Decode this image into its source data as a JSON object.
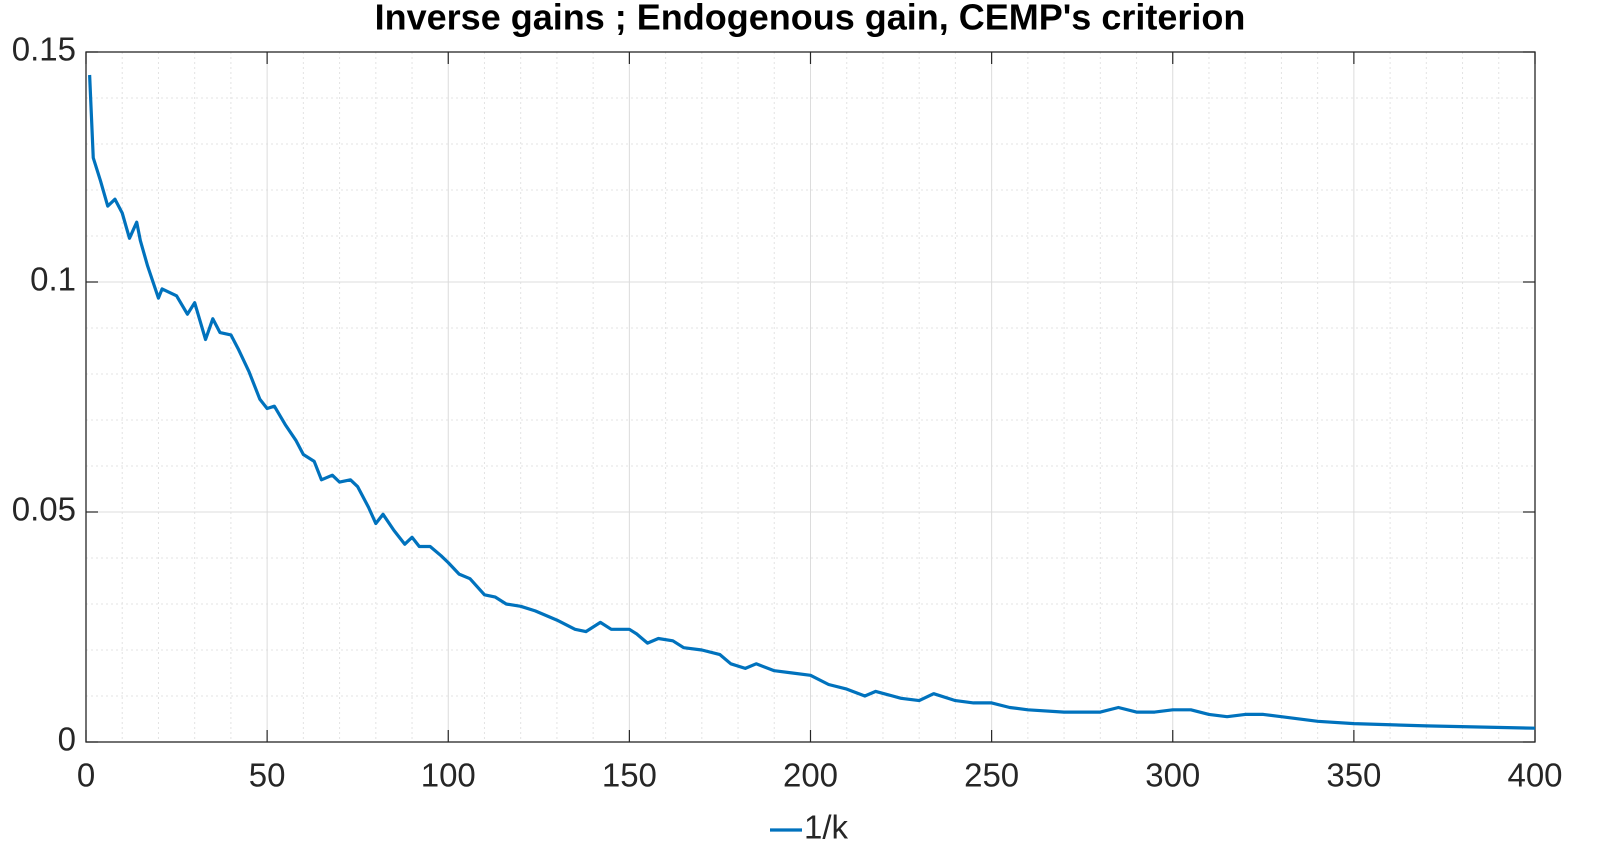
{
  "chart_data": {
    "type": "line",
    "title": "Inverse gains ; Endogenous gain, CEMP's criterion",
    "x": [
      1,
      2,
      4,
      6,
      8,
      10,
      12,
      14,
      15,
      17,
      20,
      21,
      25,
      28,
      30,
      33,
      35,
      37,
      40,
      42,
      45,
      48,
      50,
      52,
      55,
      58,
      60,
      63,
      65,
      68,
      70,
      73,
      75,
      78,
      80,
      82,
      85,
      88,
      90,
      92,
      95,
      98,
      100,
      103,
      106,
      110,
      113,
      116,
      120,
      124,
      127,
      130,
      135,
      138,
      142,
      145,
      150,
      152,
      155,
      158,
      162,
      165,
      170,
      175,
      178,
      182,
      185,
      190,
      195,
      200,
      205,
      210,
      215,
      218,
      225,
      230,
      234,
      240,
      245,
      250,
      255,
      260,
      270,
      280,
      285,
      290,
      295,
      300,
      305,
      310,
      315,
      320,
      325,
      330,
      340,
      350,
      370,
      400
    ],
    "series": [
      {
        "name": "1/k",
        "color": "#0072bd",
        "values": [
          0.145,
          0.127,
          0.122,
          0.1165,
          0.118,
          0.115,
          0.1095,
          0.113,
          0.109,
          0.1035,
          0.0965,
          0.0985,
          0.097,
          0.093,
          0.0955,
          0.0875,
          0.092,
          0.089,
          0.0885,
          0.0855,
          0.0805,
          0.0745,
          0.0725,
          0.073,
          0.069,
          0.0655,
          0.0625,
          0.061,
          0.057,
          0.058,
          0.0565,
          0.057,
          0.0555,
          0.051,
          0.0475,
          0.0495,
          0.046,
          0.043,
          0.0445,
          0.0425,
          0.0425,
          0.0405,
          0.039,
          0.0365,
          0.0355,
          0.032,
          0.0315,
          0.03,
          0.0295,
          0.0285,
          0.0275,
          0.0265,
          0.0245,
          0.024,
          0.026,
          0.0245,
          0.0245,
          0.0235,
          0.0215,
          0.0225,
          0.022,
          0.0205,
          0.02,
          0.019,
          0.017,
          0.016,
          0.017,
          0.0155,
          0.015,
          0.0145,
          0.0125,
          0.0115,
          0.01,
          0.011,
          0.0095,
          0.009,
          0.0105,
          0.009,
          0.0085,
          0.0085,
          0.0075,
          0.007,
          0.0065,
          0.0065,
          0.0075,
          0.0065,
          0.0065,
          0.007,
          0.007,
          0.006,
          0.0055,
          0.006,
          0.006,
          0.0055,
          0.0045,
          0.004,
          0.0035,
          0.003
        ]
      }
    ],
    "xlim": [
      0,
      400
    ],
    "xticks": [
      0,
      50,
      100,
      150,
      200,
      250,
      300,
      350,
      400
    ],
    "ylim": [
      0,
      0.15
    ],
    "yticks": [
      0,
      0.05,
      0.1,
      0.15
    ],
    "grid": true,
    "minor_grid": true,
    "legend": "bottom"
  }
}
